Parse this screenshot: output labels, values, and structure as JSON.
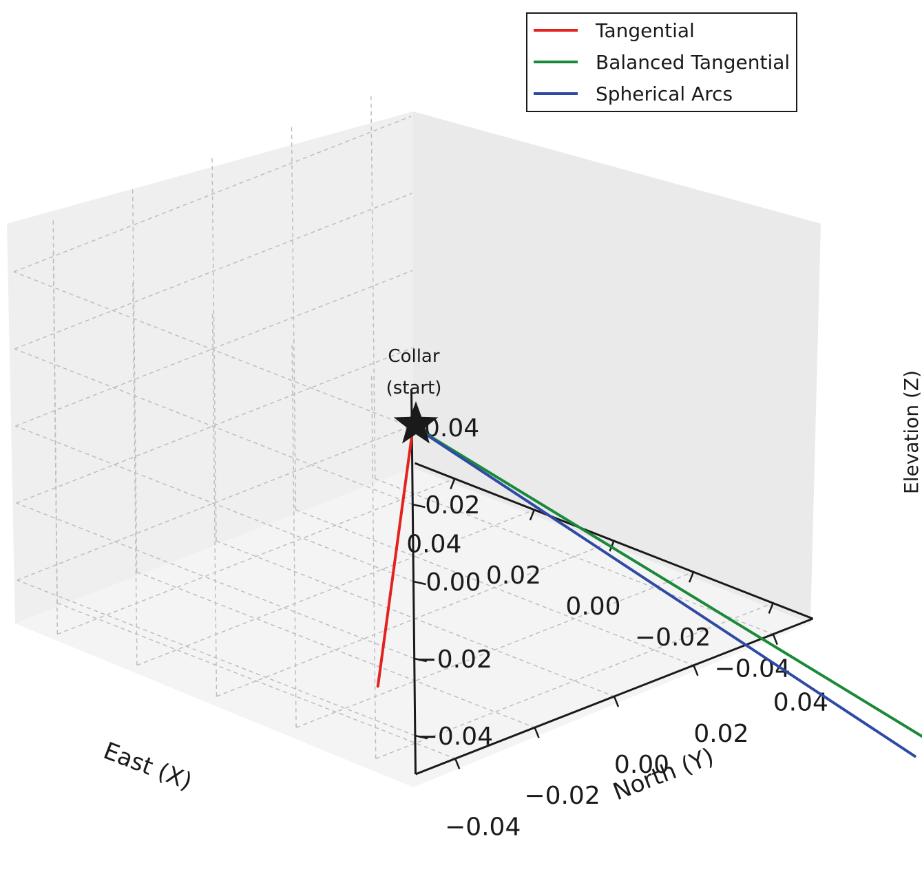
{
  "chart_data": {
    "type": "line",
    "projection": "3d",
    "axes": {
      "x": {
        "label": "East (X)",
        "ticks": [
          0.04,
          0.02,
          0.0,
          -0.02,
          -0.04
        ],
        "tick_labels": [
          "0.04",
          "0.02",
          "0.00",
          "−0.02",
          "−0.04"
        ],
        "lim": [
          -0.05,
          0.05
        ]
      },
      "y": {
        "label": "North (Y)",
        "ticks": [
          0.04,
          0.02,
          0.0,
          -0.02,
          -0.04
        ],
        "tick_labels": [
          "0.04",
          "0.02",
          "0.00",
          "−0.02",
          "−0.04"
        ],
        "lim": [
          -0.05,
          0.05
        ]
      },
      "z": {
        "label": "Elevation (Z)",
        "ticks": [
          0.04,
          0.02,
          0.0,
          -0.02,
          -0.04
        ],
        "tick_labels": [
          "0.04",
          "0.02",
          "0.00",
          "−0.02",
          "−0.04"
        ],
        "lim": [
          -0.05,
          0.05
        ]
      }
    },
    "grid": true,
    "legend_position": "top-right",
    "series": [
      {
        "name": "Tangential",
        "color": "#e4211c",
        "x": [
          0.0,
          0.07
        ],
        "y": [
          0.0,
          0.06
        ],
        "z": [
          0.0,
          -0.12
        ]
      },
      {
        "name": "Balanced Tangential",
        "color": "#1a8a3a",
        "x": [
          0.0,
          -0.025
        ],
        "y": [
          0.0,
          0.11
        ],
        "z": [
          0.0,
          -0.12
        ]
      },
      {
        "name": "Spherical Arcs",
        "color": "#2f4aa4",
        "x": [
          0.0,
          -0.02
        ],
        "y": [
          0.0,
          0.105
        ],
        "z": [
          0.0,
          -0.12
        ]
      }
    ],
    "annotations": [
      {
        "text_lines": [
          "Collar",
          "(start)"
        ],
        "x": 0.0,
        "y": 0.0,
        "z": 0.0,
        "marker": "star",
        "marker_color": "#1a1a1a"
      }
    ]
  }
}
